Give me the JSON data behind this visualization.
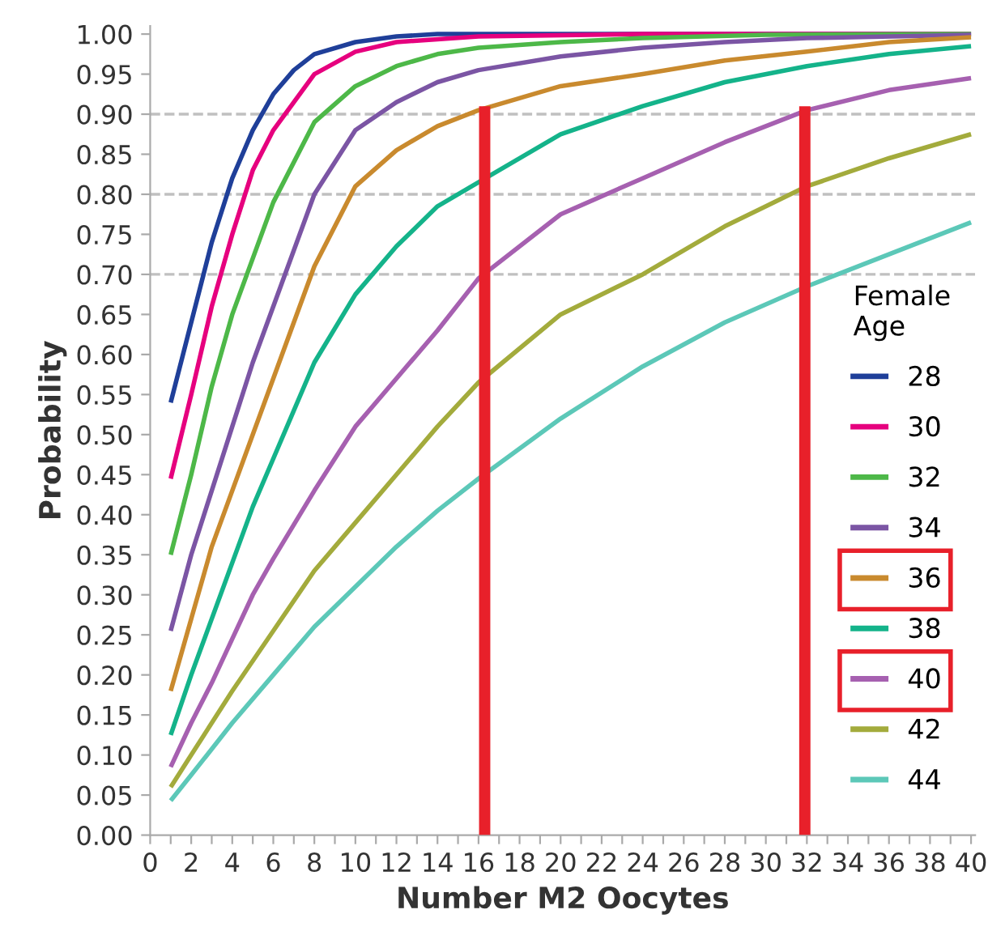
{
  "chart_data": {
    "type": "line",
    "xlabel": "Number M2 Oocytes",
    "ylabel": "Probability",
    "legend_title": "Female\nAge",
    "legend": "lower right",
    "grid": false,
    "line_style": "solid",
    "xlim": [
      0,
      40.2
    ],
    "ylim": [
      0,
      1.01
    ],
    "xticks": [
      0,
      {
        "value": 1,
        "label": null
      },
      2,
      {
        "value": 3,
        "label": null
      },
      4,
      {
        "value": 5,
        "label": null
      },
      6,
      {
        "value": 7,
        "label": null
      },
      8,
      {
        "value": 9,
        "label": null
      },
      10,
      {
        "value": 11,
        "label": null
      },
      12,
      {
        "value": 13,
        "label": null
      },
      14,
      {
        "value": 15,
        "label": null
      },
      16,
      {
        "value": 17,
        "label": null
      },
      18,
      {
        "value": 19,
        "label": null
      },
      20,
      {
        "value": 21,
        "label": null
      },
      22,
      {
        "value": 23,
        "label": null
      },
      24,
      {
        "value": 25,
        "label": null
      },
      26,
      {
        "value": 27,
        "label": null
      },
      28,
      {
        "value": 29,
        "label": null
      },
      30,
      {
        "value": 31,
        "label": null
      },
      32,
      {
        "value": 33,
        "label": null
      },
      34,
      {
        "value": 35,
        "label": null
      },
      36,
      {
        "value": 37,
        "label": null
      },
      38,
      {
        "value": 39,
        "label": null
      },
      40
    ],
    "yticks": [
      {
        "value": 0,
        "label": "0.00"
      },
      {
        "value": 0.05,
        "label": "0.05"
      },
      {
        "value": 0.1,
        "label": "0.10"
      },
      {
        "value": 0.15,
        "label": "0.15"
      },
      {
        "value": 0.2,
        "label": "0.20"
      },
      {
        "value": 0.25,
        "label": "0.25"
      },
      {
        "value": 0.3,
        "label": "0.30"
      },
      {
        "value": 0.35,
        "label": "0.35"
      },
      {
        "value": 0.4,
        "label": "0.40"
      },
      {
        "value": 0.45,
        "label": "0.45"
      },
      {
        "value": 0.5,
        "label": "0.50"
      },
      {
        "value": 0.55,
        "label": "0.55"
      },
      {
        "value": 0.6,
        "label": "0.60"
      },
      {
        "value": 0.65,
        "label": "0.65"
      },
      {
        "value": 0.7,
        "label": "0.70"
      },
      {
        "value": 0.75,
        "label": "0.75"
      },
      {
        "value": 0.8,
        "label": "0.80"
      },
      {
        "value": 0.85,
        "label": "0.85"
      },
      {
        "value": 0.9,
        "label": "0.90"
      },
      {
        "value": 0.95,
        "label": "0.95"
      },
      {
        "value": 1,
        "label": "1.00"
      }
    ],
    "ref_lines": [
      {
        "axis": "y",
        "value": 0.7,
        "color": "#c0c0c0",
        "line_style": "dashed"
      },
      {
        "axis": "y",
        "value": 0.8,
        "color": "#c0c0c0",
        "line_style": "dashed"
      },
      {
        "axis": "y",
        "value": 0.9,
        "color": "#c0c0c0",
        "line_style": "dashed"
      }
    ],
    "series": [
      {
        "name": "28",
        "color": "#1f3f99",
        "x": [
          1,
          2,
          3,
          4,
          5,
          6,
          7,
          8,
          10,
          12,
          14,
          40
        ],
        "values": [
          0.54,
          0.64,
          0.74,
          0.82,
          0.88,
          0.925,
          0.955,
          0.975,
          0.99,
          0.997,
          1,
          1
        ]
      },
      {
        "name": "30",
        "color": "#e6007e",
        "x": [
          1,
          2,
          3,
          4,
          5,
          6,
          8,
          10,
          12,
          16,
          24,
          40
        ],
        "values": [
          0.445,
          0.55,
          0.66,
          0.75,
          0.83,
          0.88,
          0.95,
          0.978,
          0.99,
          0.997,
          1,
          1
        ]
      },
      {
        "name": "32",
        "color": "#4db848",
        "x": [
          1,
          2,
          3,
          4,
          5,
          6,
          8,
          10,
          12,
          14,
          16,
          20,
          24,
          30,
          40
        ],
        "values": [
          0.35,
          0.45,
          0.56,
          0.65,
          0.72,
          0.79,
          0.89,
          0.935,
          0.96,
          0.975,
          0.983,
          0.99,
          0.995,
          0.999,
          1
        ]
      },
      {
        "name": "34",
        "color": "#7b55a4",
        "x": [
          1,
          2,
          3,
          4,
          5,
          6,
          8,
          10,
          12,
          14,
          16,
          20,
          24,
          28,
          32,
          40
        ],
        "values": [
          0.255,
          0.35,
          0.43,
          0.51,
          0.59,
          0.66,
          0.8,
          0.88,
          0.915,
          0.94,
          0.955,
          0.972,
          0.983,
          0.99,
          0.995,
          0.999
        ]
      },
      {
        "name": "36",
        "color": "#c98a2e",
        "x": [
          1,
          2,
          3,
          4,
          5,
          6,
          8,
          10,
          12,
          14,
          16,
          20,
          24,
          28,
          32,
          36,
          40
        ],
        "values": [
          0.18,
          0.27,
          0.36,
          0.43,
          0.5,
          0.57,
          0.71,
          0.81,
          0.855,
          0.885,
          0.905,
          0.935,
          0.95,
          0.967,
          0.978,
          0.99,
          0.996
        ]
      },
      {
        "name": "38",
        "color": "#14b38a",
        "x": [
          1,
          2,
          3,
          4,
          5,
          6,
          8,
          10,
          12,
          14,
          16,
          20,
          24,
          28,
          32,
          36,
          40
        ],
        "values": [
          0.125,
          0.2,
          0.27,
          0.34,
          0.41,
          0.47,
          0.59,
          0.675,
          0.735,
          0.785,
          0.815,
          0.875,
          0.91,
          0.94,
          0.96,
          0.975,
          0.985
        ]
      },
      {
        "name": "40",
        "color": "#a660b0",
        "x": [
          1,
          2,
          3,
          4,
          5,
          6,
          8,
          10,
          12,
          14,
          16,
          20,
          24,
          28,
          32,
          36,
          40
        ],
        "values": [
          0.085,
          0.14,
          0.19,
          0.245,
          0.3,
          0.345,
          0.43,
          0.51,
          0.57,
          0.63,
          0.695,
          0.775,
          0.82,
          0.865,
          0.905,
          0.93,
          0.945
        ]
      },
      {
        "name": "42",
        "color": "#a3ab3c",
        "x": [
          1,
          2,
          4,
          6,
          8,
          10,
          12,
          14,
          16,
          20,
          24,
          28,
          32,
          36,
          40
        ],
        "values": [
          0.06,
          0.1,
          0.18,
          0.255,
          0.33,
          0.39,
          0.45,
          0.51,
          0.565,
          0.65,
          0.7,
          0.76,
          0.81,
          0.845,
          0.875
        ]
      },
      {
        "name": "44",
        "color": "#5cc8b8",
        "x": [
          1,
          2,
          4,
          6,
          8,
          10,
          12,
          14,
          16,
          20,
          24,
          28,
          32,
          36,
          40
        ],
        "values": [
          0.043,
          0.075,
          0.14,
          0.2,
          0.26,
          0.31,
          0.36,
          0.405,
          0.445,
          0.52,
          0.585,
          0.64,
          0.685,
          0.725,
          0.765
        ]
      },
      {
        "color": "#e8202a",
        "x": [
          16.3,
          16.3
        ],
        "values": [
          0,
          0.91
        ]
      },
      {
        "color": "#e8202a",
        "x": [
          31.9,
          31.9
        ],
        "values": [
          0,
          0.91
        ]
      }
    ]
  }
}
